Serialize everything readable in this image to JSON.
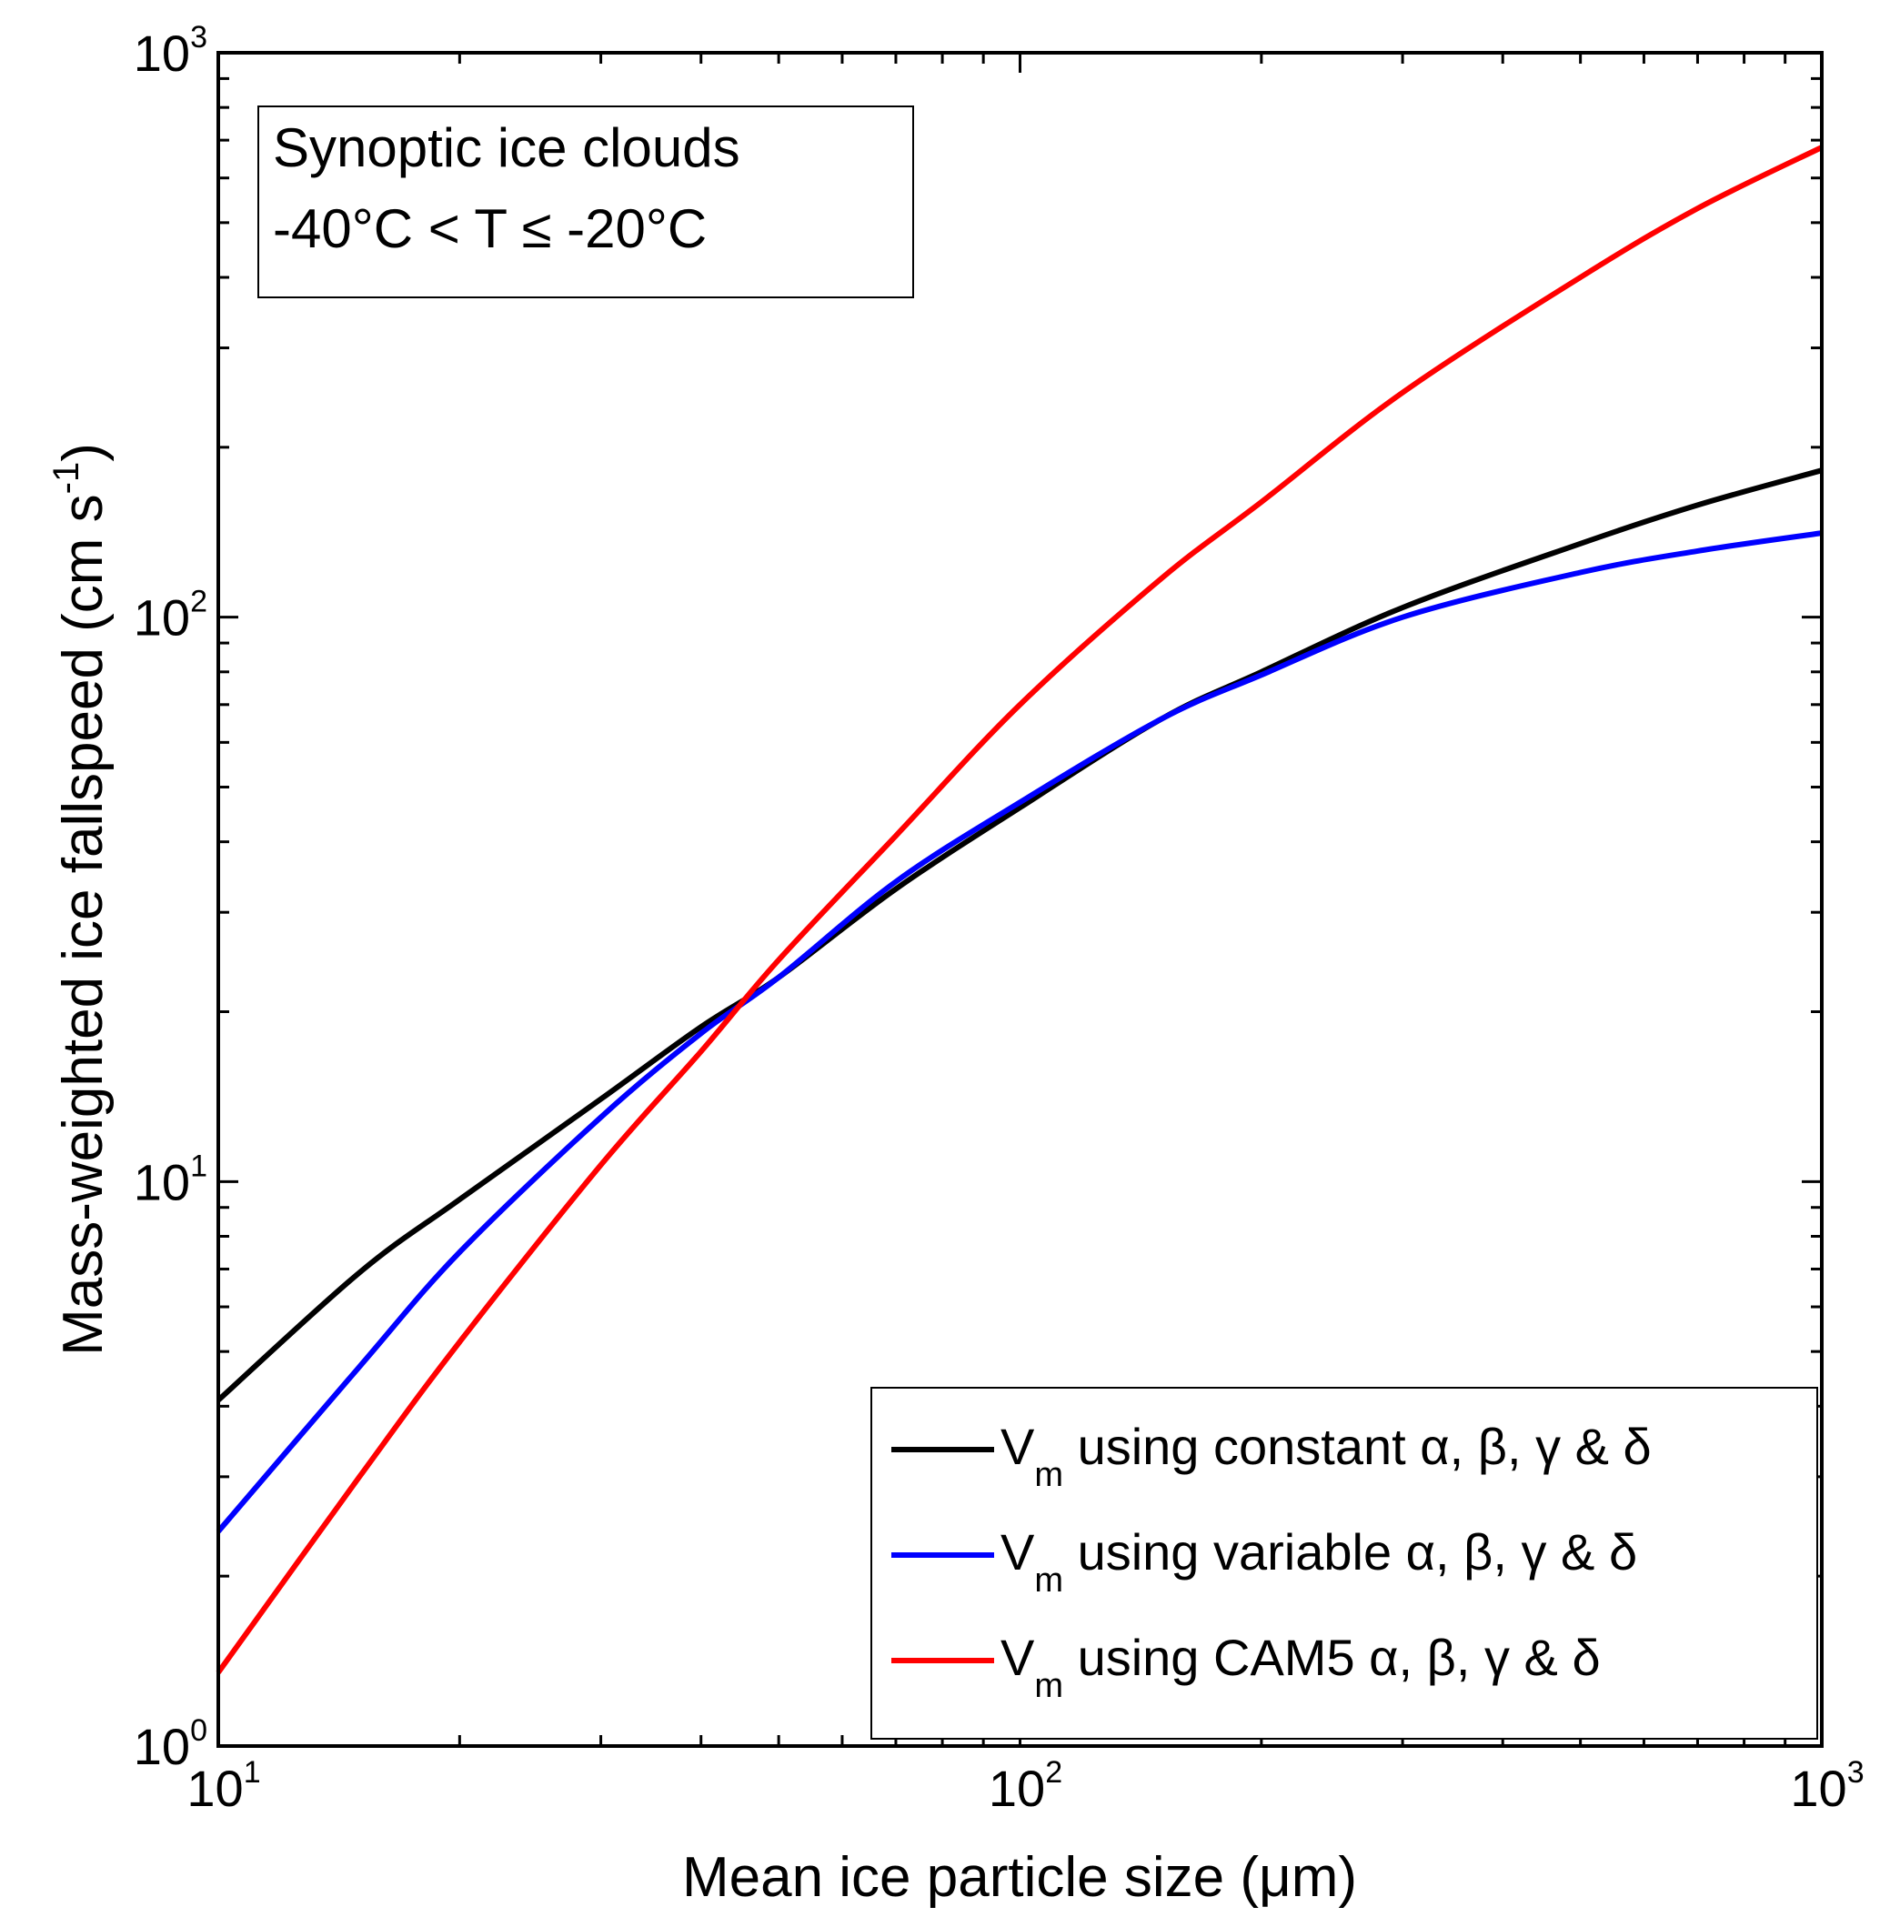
{
  "chart_data": {
    "type": "line",
    "xscale": "log",
    "yscale": "log",
    "xlim": [
      10,
      1000
    ],
    "ylim": [
      1,
      1000
    ],
    "xlabel": "Mean ice particle size (μm)",
    "ylabel": "Mass-weighted ice fallspeed (cm s",
    "ylabel_sup": "-1",
    "ylabel_close": ")",
    "xticks": [
      {
        "base": "10",
        "exp": "1",
        "value": 10
      },
      {
        "base": "10",
        "exp": "2",
        "value": 100
      },
      {
        "base": "10",
        "exp": "3",
        "value": 1000
      }
    ],
    "yticks": [
      {
        "base": "10",
        "exp": "0",
        "value": 1
      },
      {
        "base": "10",
        "exp": "1",
        "value": 10
      },
      {
        "base": "10",
        "exp": "2",
        "value": 100
      },
      {
        "base": "10",
        "exp": "3",
        "value": 1000
      }
    ],
    "grid": false,
    "annotation": [
      "Synoptic ice clouds",
      "-40°C < T ≤ -20°C"
    ],
    "legend_position": "bottom-right",
    "series": [
      {
        "name_main": "V",
        "name_sub": "m",
        "name_rest": " using constant α, β, γ & δ",
        "color": "#000000",
        "x": [
          10,
          15,
          20,
          30,
          40,
          50,
          70,
          100,
          150,
          200,
          300,
          500,
          700,
          1000
        ],
        "y": [
          4.1,
          6.9,
          9.3,
          14.0,
          18.8,
          23.0,
          33.0,
          46.0,
          66.0,
          80.0,
          104.0,
          135.0,
          158.0,
          182.0
        ]
      },
      {
        "name_main": "V",
        "name_sub": "m",
        "name_rest": " using variable α, β, γ & δ",
        "color": "#0000ff",
        "x": [
          10,
          15,
          20,
          30,
          40,
          50,
          70,
          100,
          150,
          200,
          300,
          500,
          700,
          1000
        ],
        "y": [
          2.4,
          4.7,
          7.5,
          13.0,
          18.3,
          23.0,
          34.0,
          47.0,
          66.0,
          79.0,
          100.0,
          120.0,
          131.0,
          141.0
        ]
      },
      {
        "name_main": "V",
        "name_sub": "m",
        "name_rest": " using CAM5 α, β, γ & δ",
        "color": "#ff0000",
        "x": [
          10,
          15,
          20,
          30,
          40,
          50,
          70,
          100,
          150,
          200,
          300,
          500,
          700,
          1000
        ],
        "y": [
          1.35,
          3.0,
          5.2,
          10.7,
          17.0,
          24.7,
          41.0,
          70.0,
          117.0,
          160.0,
          250.0,
          400.0,
          530.0,
          680.0
        ]
      }
    ]
  }
}
